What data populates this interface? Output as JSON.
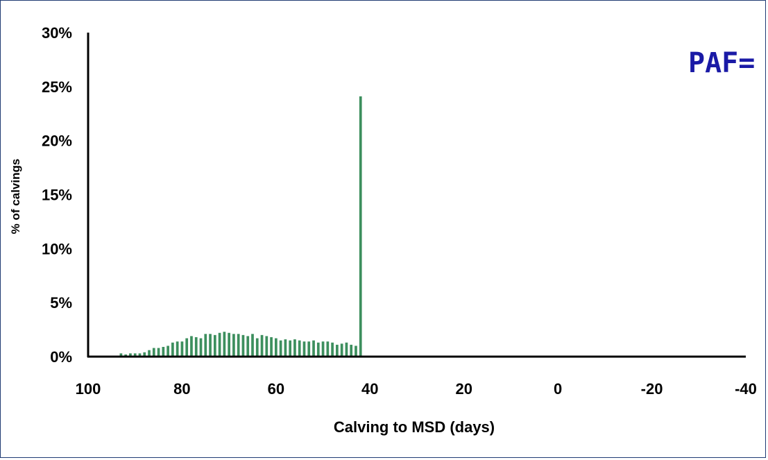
{
  "chart_data": {
    "type": "bar",
    "xlabel": "Calving to MSD (days)",
    "ylabel": "% of calvings",
    "x_ticks": [
      "100",
      "80",
      "60",
      "40",
      "20",
      "0",
      "-20",
      "-40"
    ],
    "x_tick_values": [
      100,
      80,
      60,
      40,
      20,
      0,
      -20,
      -40
    ],
    "y_ticks": [
      "0%",
      "5%",
      "10%",
      "15%",
      "20%",
      "25%",
      "30%"
    ],
    "y_tick_values": [
      0,
      5,
      10,
      15,
      20,
      25,
      30
    ],
    "xlim": [
      100,
      -40
    ],
    "ylim": [
      0,
      30
    ],
    "x_reversed": true,
    "grid": false,
    "bar_color": "#3d8f5e",
    "annotation": "PAF=",
    "x": [
      93,
      92,
      91,
      90,
      89,
      88,
      87,
      86,
      85,
      84,
      83,
      82,
      81,
      80,
      79,
      78,
      77,
      76,
      75,
      74,
      73,
      72,
      71,
      70,
      69,
      68,
      67,
      66,
      65,
      64,
      63,
      62,
      61,
      60,
      59,
      58,
      57,
      56,
      55,
      54,
      53,
      52,
      51,
      50,
      49,
      48,
      47,
      46,
      45,
      44,
      43,
      42
    ],
    "values": [
      0.3,
      0.2,
      0.3,
      0.3,
      0.3,
      0.4,
      0.6,
      0.8,
      0.8,
      0.9,
      1.0,
      1.3,
      1.4,
      1.4,
      1.7,
      1.9,
      1.8,
      1.7,
      2.1,
      2.1,
      2.0,
      2.2,
      2.3,
      2.2,
      2.1,
      2.1,
      2.0,
      1.9,
      2.1,
      1.7,
      2.0,
      1.9,
      1.8,
      1.7,
      1.5,
      1.6,
      1.5,
      1.6,
      1.5,
      1.4,
      1.4,
      1.5,
      1.3,
      1.4,
      1.4,
      1.3,
      1.1,
      1.2,
      1.3,
      1.1,
      1.0,
      24.1
    ]
  },
  "colors": {
    "frame": "#1f3b73",
    "annotation": "#1a1aa6",
    "axis": "#000000"
  }
}
